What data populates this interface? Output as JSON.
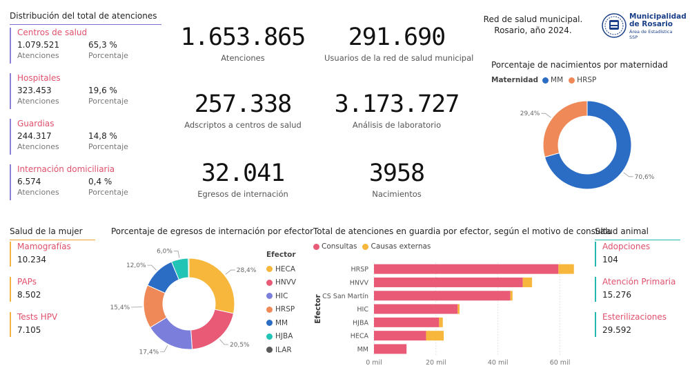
{
  "distribution": {
    "title": "Distribución del total de atenciones",
    "items": [
      {
        "name": "Centros de salud",
        "value": "1.079.521",
        "value_label": "Atenciones",
        "pct": "65,3 %",
        "pct_label": "Porcentaje"
      },
      {
        "name": "Hospitales",
        "value": "323.453",
        "value_label": "Atenciones",
        "pct": "19,6 %",
        "pct_label": "Porcentaje"
      },
      {
        "name": "Guardias",
        "value": "244.317",
        "value_label": "Atenciones",
        "pct": "14,8 %",
        "pct_label": "Porcentaje"
      },
      {
        "name": "Internación domiciliaria",
        "value": "6.574",
        "value_label": "Atenciones",
        "pct": "0,4 %",
        "pct_label": "Porcentaje"
      }
    ]
  },
  "kpis": [
    {
      "value": "1.653.865",
      "label": "Atenciones"
    },
    {
      "value": "291.690",
      "label": "Usuarios de la red de salud municipal"
    },
    {
      "value": "257.338",
      "label": "Adscriptos a centros de salud"
    },
    {
      "value": "3.173.727",
      "label": "Análisis de laboratorio"
    },
    {
      "value": "32.041",
      "label": "Egresos de internación"
    },
    {
      "value": "3958",
      "label": "Nacimientos"
    }
  ],
  "header": {
    "line1": "Red de salud municipal.",
    "line2": "Rosario, año 2024.",
    "logo_line1": "Municipalidad",
    "logo_line2": "de Rosario",
    "logo_line3": "Área de Estadística",
    "logo_line4": "SSP",
    "logo_icon": "city-seal-icon"
  },
  "births_chart": {
    "title": "Porcentaje de nacimientos por maternidad",
    "legend_title": "Maternidad",
    "colors": {
      "MM": "#2b6cc4",
      "HRSP": "#ef8a58"
    }
  },
  "mujer": {
    "title": "Salud de la mujer",
    "items": [
      {
        "name": "Mamografías",
        "value": "10.234"
      },
      {
        "name": "PAPs",
        "value": "8.502"
      },
      {
        "name": "Tests HPV",
        "value": "7.105"
      }
    ]
  },
  "egresos_chart": {
    "title": "Porcentaje de egresos de internación por efector",
    "legend_title": "Efector"
  },
  "guardia_chart": {
    "title": "Total de atenciones en guardia por efector, según el motivo de consulta",
    "ylabel": "Efector"
  },
  "animal": {
    "title": "Salud animal",
    "items": [
      {
        "name": "Adopciones",
        "value": "104"
      },
      {
        "name": "Atención Primaria",
        "value": "15.276"
      },
      {
        "name": "Esterilizaciones",
        "value": "29.592"
      }
    ]
  },
  "chart_data": [
    {
      "type": "pie",
      "title": "Porcentaje de nacimientos por maternidad",
      "legend_title": "Maternidad",
      "categories": [
        "MM",
        "HRSP"
      ],
      "values": [
        70.6,
        29.4
      ],
      "labels": [
        "70,6%",
        "29,4%"
      ],
      "colors": [
        "#2b6cc4",
        "#ef8a58"
      ],
      "legend": "top-left"
    },
    {
      "type": "pie",
      "title": "Porcentaje de egresos de internación por efector",
      "legend_title": "Efector",
      "categories": [
        "HECA",
        "HNVV",
        "HIC",
        "HRSP",
        "MM",
        "HJBA",
        "ILAR"
      ],
      "values": [
        28.4,
        20.5,
        17.4,
        15.4,
        12.0,
        6.0,
        0.3
      ],
      "labels": [
        "28,4%",
        "20,5%",
        "17,4%",
        "15,4%",
        "12,0%",
        "6,0%",
        ""
      ],
      "colors": [
        "#f6b73c",
        "#e85a76",
        "#7b7fdb",
        "#ef8a58",
        "#2b6cc4",
        "#22c5b5",
        "#5a5a5a"
      ],
      "legend": "right"
    },
    {
      "type": "bar",
      "orientation": "horizontal",
      "stacked": true,
      "title": "Total de atenciones en guardia por efector, según el motivo de consulta",
      "ylabel": "Efector",
      "categories": [
        "HRSP",
        "HNVV",
        "CS San Martín",
        "HIC",
        "HJBA",
        "HECA",
        "MM"
      ],
      "series": [
        {
          "name": "Consultas",
          "color": "#e85a76",
          "values": [
            59500,
            48000,
            44000,
            27000,
            21000,
            16800,
            10500
          ]
        },
        {
          "name": "Causas externas",
          "color": "#f6b73c",
          "values": [
            5000,
            3000,
            700,
            600,
            1200,
            5700,
            0
          ]
        }
      ],
      "xticks": [
        "0 mil",
        "20 mil",
        "40 mil",
        "60 mil"
      ],
      "xlim": [
        0,
        65000
      ],
      "grid": true,
      "legend": "top-left"
    }
  ]
}
